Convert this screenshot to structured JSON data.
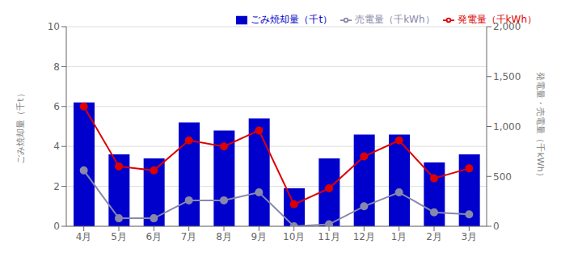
{
  "chart_data": {
    "type": "bar",
    "categories": [
      "4月",
      "5月",
      "6月",
      "7月",
      "8月",
      "9月",
      "10月",
      "11月",
      "12月",
      "1月",
      "2月",
      "3月"
    ],
    "ylabel": "ごみ焼却量（千t）",
    "y2label": "発電量・売電量（千kWh）",
    "ylim": [
      0,
      10
    ],
    "yticks": [
      0,
      2,
      4,
      6,
      8,
      10
    ],
    "y2lim": [
      0,
      2000
    ],
    "y2ticks": [
      0,
      500,
      {
        "value": 1000,
        "label": "1,000"
      },
      {
        "value": 1500,
        "label": "1,500"
      },
      {
        "value": 2000,
        "label": "2,000"
      }
    ],
    "grid": true,
    "legend": "upper right",
    "series": [
      {
        "name": "ごみ焼却量（千t）",
        "type": "bar",
        "color": "#0000cc",
        "values": [
          6.2,
          3.6,
          3.4,
          5.2,
          4.8,
          5.4,
          1.9,
          3.4,
          4.6,
          4.6,
          3.2,
          3.6
        ]
      },
      {
        "name": "発電量（千kWh）",
        "type": "line",
        "axis": "y2",
        "color": "#dd0000",
        "marker": "circle",
        "values": [
          1200,
          600,
          560,
          860,
          800,
          960,
          220,
          380,
          700,
          860,
          480,
          580
        ]
      },
      {
        "name": "売電量（千kWh）",
        "type": "line",
        "axis": "y2",
        "color": "#8888aa",
        "marker": "circle",
        "values": [
          560,
          80,
          80,
          260,
          260,
          340,
          0,
          20,
          200,
          340,
          140,
          120
        ]
      }
    ]
  }
}
